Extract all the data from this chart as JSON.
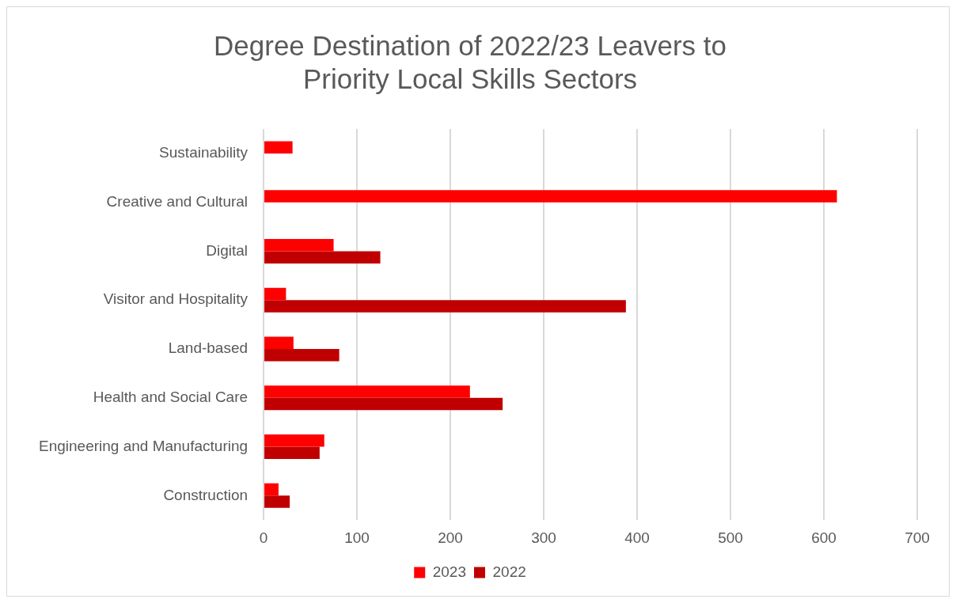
{
  "chart_data": {
    "type": "bar",
    "orientation": "horizontal",
    "title": "Degree Destination of 2022/23 Leavers to Priority Local Skills Sectors",
    "categories": [
      "Sustainability",
      "Creative and Cultural",
      "Digital",
      "Visitor and Hospitality",
      "Land-based",
      "Health and Social Care",
      "Engineering and Manufacturing",
      "Construction"
    ],
    "series": [
      {
        "name": "2023",
        "color": "#ff0000",
        "values": [
          31,
          614,
          75,
          24,
          32,
          221,
          65,
          16
        ]
      },
      {
        "name": "2022",
        "color": "#c00000",
        "values": [
          null,
          null,
          125,
          388,
          81,
          256,
          60,
          28
        ]
      }
    ],
    "xlim": [
      0,
      700
    ],
    "xticks": [
      0,
      100,
      200,
      300,
      400,
      500,
      600,
      700
    ],
    "grid": "x",
    "legend": "bottom"
  }
}
